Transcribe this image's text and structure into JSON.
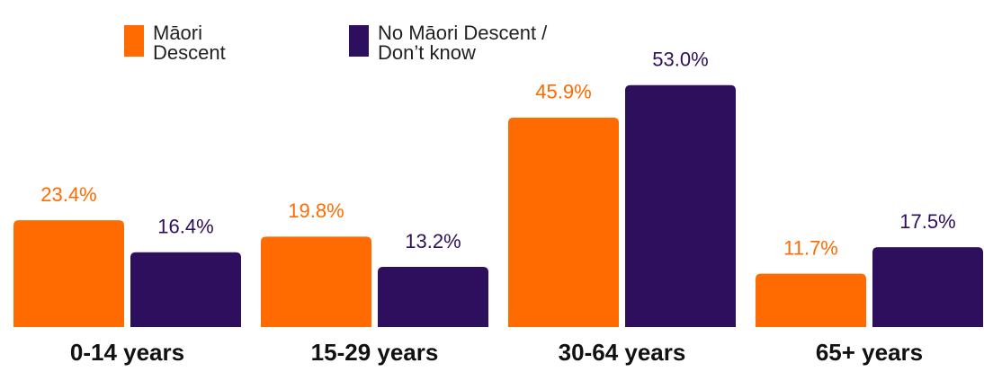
{
  "chart_data": {
    "type": "bar",
    "categories": [
      "0-14 years",
      "15-29 years",
      "30-64 years",
      "65+ years"
    ],
    "series": [
      {
        "name": "Māori Descent",
        "color": "#ff6b00",
        "values": [
          23.4,
          19.8,
          45.9,
          11.7
        ],
        "value_labels": [
          "23.4%",
          "19.8%",
          "45.9%",
          "11.7%"
        ]
      },
      {
        "name": "No Māori Descent / Don’t know",
        "color": "#2e0f5e",
        "values": [
          16.4,
          13.2,
          53.0,
          17.5
        ],
        "value_labels": [
          "16.4%",
          "13.2%",
          "53.0%",
          "17.5%"
        ]
      }
    ],
    "legend": "top-left"
  }
}
